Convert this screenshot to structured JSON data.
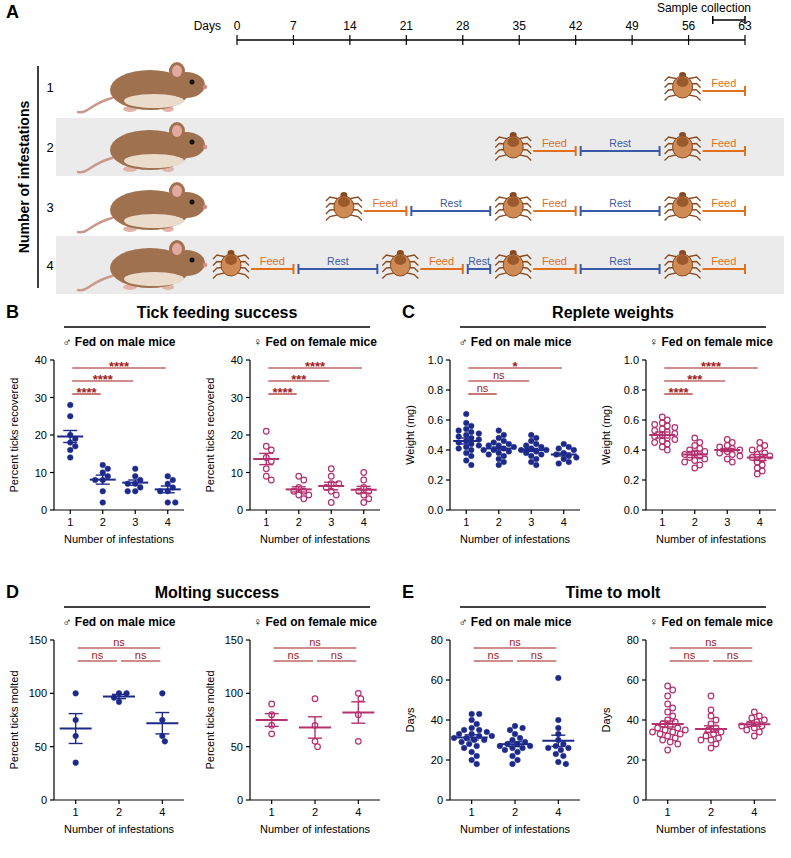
{
  "diagram": {
    "letter": "A",
    "axis_label": "Days",
    "days": [
      0,
      7,
      14,
      21,
      28,
      35,
      42,
      49,
      56,
      63
    ],
    "sample_collection": {
      "label": "Sample collection",
      "start": 59,
      "end": 63
    },
    "rows_label": "Number of infestations",
    "feed_label": "Feed",
    "rest_label": "Rest",
    "feed_duration": 7,
    "rows": [
      {
        "label": "1",
        "feeds": [
          56
        ]
      },
      {
        "label": "2",
        "feeds": [
          35,
          56
        ]
      },
      {
        "label": "3",
        "feeds": [
          14,
          35,
          56
        ]
      },
      {
        "label": "4",
        "feeds": [
          0,
          21,
          35,
          56
        ]
      }
    ]
  },
  "panels": [
    {
      "letter": "B",
      "title": "Tick feeding success"
    },
    {
      "letter": "C",
      "title": "Replete weights"
    },
    {
      "letter": "D",
      "title": "Molting success"
    },
    {
      "letter": "E",
      "title": "Time to molt"
    }
  ],
  "chart_data": [
    {
      "type": "scatter",
      "subtitle": "♂ Fed on male mice",
      "x_label": "Number of infestations",
      "y_label": "Percent ticks recovered",
      "categories": [
        "1",
        "2",
        "3",
        "4"
      ],
      "color": "#1d2a8a",
      "marker": "circle",
      "values": [
        [
          28,
          25,
          20,
          19,
          18,
          17,
          16,
          14
        ],
        [
          12,
          11,
          10,
          9,
          8,
          8,
          5,
          2
        ],
        [
          11,
          9,
          8,
          7,
          7,
          6,
          5,
          5
        ],
        [
          9,
          8,
          7,
          6,
          5,
          5,
          2,
          2
        ]
      ],
      "means": [
        19.6,
        8.1,
        7.3,
        5.5
      ],
      "errors": [
        1.6,
        1.2,
        0.7,
        0.9
      ],
      "ylim": [
        0,
        40
      ],
      "yticks": [
        0,
        10,
        20,
        30,
        40
      ],
      "annotations": [
        {
          "from": "1",
          "to": "2",
          "label": "****"
        },
        {
          "from": "1",
          "to": "3",
          "label": "****"
        },
        {
          "from": "1",
          "to": "4",
          "label": "****"
        }
      ]
    },
    {
      "type": "scatter",
      "subtitle": "♀ Fed on female mice",
      "x_label": "Number of infestations",
      "y_label": "Percent ticks recovered",
      "categories": [
        "1",
        "2",
        "3",
        "4"
      ],
      "color": "#b5306f",
      "marker": "open_circle",
      "values": [
        [
          21,
          17,
          16,
          14,
          13,
          11,
          9,
          8
        ],
        [
          9,
          8,
          6,
          5,
          5,
          4,
          4,
          3
        ],
        [
          11,
          9,
          7,
          7,
          6,
          5,
          4,
          2
        ],
        [
          10,
          8,
          6,
          5,
          5,
          4,
          3,
          2
        ]
      ],
      "means": [
        13.6,
        5.5,
        6.4,
        5.4
      ],
      "errors": [
        1.5,
        0.7,
        1.0,
        0.9
      ],
      "ylim": [
        0,
        40
      ],
      "yticks": [
        0,
        10,
        20,
        30,
        40
      ],
      "annotations": [
        {
          "from": "1",
          "to": "2",
          "label": "****"
        },
        {
          "from": "1",
          "to": "3",
          "label": "***"
        },
        {
          "from": "1",
          "to": "4",
          "label": "****"
        }
      ]
    },
    {
      "type": "scatter",
      "subtitle": "♂ Fed on male mice",
      "x_label": "Number of infestations",
      "y_label": "Weight (mg)",
      "categories": [
        "1",
        "2",
        "3",
        "4"
      ],
      "color": "#1d2a8a",
      "marker": "circle",
      "values": [
        [
          0.64,
          0.58,
          0.56,
          0.54,
          0.53,
          0.52,
          0.51,
          0.5,
          0.49,
          0.48,
          0.47,
          0.46,
          0.45,
          0.44,
          0.43,
          0.42,
          0.41,
          0.4,
          0.38,
          0.36,
          0.33,
          0.3
        ],
        [
          0.53,
          0.5,
          0.48,
          0.46,
          0.45,
          0.44,
          0.43,
          0.43,
          0.42,
          0.41,
          0.4,
          0.4,
          0.39,
          0.38,
          0.37,
          0.36,
          0.34,
          0.32,
          0.3
        ],
        [
          0.5,
          0.48,
          0.46,
          0.44,
          0.43,
          0.42,
          0.41,
          0.4,
          0.4,
          0.39,
          0.38,
          0.37,
          0.36,
          0.34,
          0.32,
          0.3
        ],
        [
          0.44,
          0.42,
          0.41,
          0.4,
          0.38,
          0.37,
          0.36,
          0.35,
          0.34,
          0.32,
          0.31
        ]
      ],
      "means": [
        0.46,
        0.41,
        0.4,
        0.37
      ],
      "errors": [
        0.02,
        0.01,
        0.01,
        0.01
      ],
      "ylim": [
        0,
        1
      ],
      "yticks": [
        {
          "value": 0,
          "label": "0.0"
        },
        0.2,
        0.4,
        0.6,
        0.8,
        {
          "value": 1,
          "label": "1.0"
        }
      ],
      "annotations": [
        {
          "from": "1",
          "to": "2",
          "label": "ns"
        },
        {
          "from": "1",
          "to": "3",
          "label": "ns"
        },
        {
          "from": "1",
          "to": "4",
          "label": "*"
        }
      ]
    },
    {
      "type": "scatter",
      "subtitle": "♀ Fed on female mice",
      "x_label": "Number of infestations",
      "y_label": "Weight (mg)",
      "categories": [
        "1",
        "2",
        "3",
        "4"
      ],
      "color": "#b5306f",
      "marker": "open_circle",
      "values": [
        [
          0.62,
          0.6,
          0.58,
          0.57,
          0.56,
          0.55,
          0.54,
          0.53,
          0.52,
          0.51,
          0.5,
          0.49,
          0.48,
          0.47,
          0.46,
          0.45,
          0.44,
          0.42,
          0.4
        ],
        [
          0.48,
          0.45,
          0.43,
          0.41,
          0.4,
          0.39,
          0.38,
          0.37,
          0.36,
          0.35,
          0.34,
          0.33,
          0.32,
          0.3,
          0.28
        ],
        [
          0.47,
          0.45,
          0.43,
          0.42,
          0.41,
          0.4,
          0.39,
          0.38,
          0.37,
          0.36,
          0.34,
          0.32
        ],
        [
          0.45,
          0.43,
          0.41,
          0.4,
          0.38,
          0.37,
          0.36,
          0.35,
          0.34,
          0.32,
          0.3,
          0.28,
          0.26,
          0.24
        ]
      ],
      "means": [
        0.5,
        0.37,
        0.4,
        0.35
      ],
      "errors": [
        0.02,
        0.02,
        0.01,
        0.02
      ],
      "ylim": [
        0,
        1
      ],
      "yticks": [
        {
          "value": 0,
          "label": "0.0"
        },
        0.2,
        0.4,
        0.6,
        0.8,
        {
          "value": 1,
          "label": "1.0"
        }
      ],
      "annotations": [
        {
          "from": "1",
          "to": "2",
          "label": "****"
        },
        {
          "from": "1",
          "to": "3",
          "label": "***"
        },
        {
          "from": "1",
          "to": "4",
          "label": "****"
        }
      ]
    },
    {
      "type": "scatter",
      "subtitle": "♂ Fed on male mice",
      "x_label": "Number of infestations",
      "y_label": "Percent ticks molted",
      "categories": [
        "1",
        "2",
        "4"
      ],
      "color": "#1d2a8a",
      "marker": "circle",
      "values": [
        [
          100,
          75,
          60,
          35
        ],
        [
          100,
          100,
          96,
          92
        ],
        [
          100,
          75,
          60,
          55
        ]
      ],
      "means": [
        67,
        97,
        72
      ],
      "errors": [
        14,
        2,
        10
      ],
      "ylim": [
        0,
        150
      ],
      "yticks": [
        0,
        50,
        100,
        150
      ],
      "annotations": [
        {
          "from": "1",
          "to": "2",
          "label": "ns"
        },
        {
          "from": "2",
          "to": "4",
          "label": "ns"
        },
        {
          "from": "1",
          "to": "4",
          "label": "ns"
        }
      ]
    },
    {
      "type": "scatter",
      "subtitle": "♀ Fed on female mice",
      "x_label": "Number of infestations",
      "y_label": "Percent ticks molted",
      "categories": [
        "1",
        "2",
        "4"
      ],
      "color": "#b5306f",
      "marker": "open_circle",
      "values": [
        [
          90,
          80,
          70,
          62
        ],
        [
          95,
          70,
          55,
          50
        ],
        [
          100,
          95,
          80,
          55
        ]
      ],
      "means": [
        75,
        68,
        82
      ],
      "errors": [
        6,
        10,
        10
      ],
      "ylim": [
        0,
        150
      ],
      "yticks": [
        0,
        50,
        100,
        150
      ],
      "annotations": [
        {
          "from": "1",
          "to": "2",
          "label": "ns"
        },
        {
          "from": "2",
          "to": "4",
          "label": "ns"
        },
        {
          "from": "1",
          "to": "4",
          "label": "ns"
        }
      ]
    },
    {
      "type": "scatter",
      "subtitle": "♂ Fed on male mice",
      "x_label": "Number of infestations",
      "y_label": "Days",
      "categories": [
        "1",
        "2",
        "4"
      ],
      "color": "#1d2a8a",
      "marker": "circle",
      "values": [
        [
          43,
          43,
          40,
          38,
          36,
          35,
          35,
          34,
          33,
          33,
          32,
          32,
          31,
          31,
          30,
          30,
          29,
          28,
          27,
          26,
          24,
          22,
          20,
          18
        ],
        [
          37,
          36,
          35,
          33,
          31,
          30,
          29,
          28,
          28,
          27,
          27,
          26,
          26,
          25,
          24,
          22,
          20,
          18
        ],
        [
          61,
          40,
          36,
          33,
          30,
          28,
          27,
          26,
          26,
          25,
          23,
          22,
          19,
          18
        ]
      ],
      "means": [
        31.3,
        27.9,
        29.6
      ],
      "errors": [
        1.3,
        1.2,
        2.8
      ],
      "ylim": [
        0,
        80
      ],
      "yticks": [
        0,
        20,
        40,
        60,
        80
      ],
      "annotations": [
        {
          "from": "1",
          "to": "2",
          "label": "ns"
        },
        {
          "from": "2",
          "to": "4",
          "label": "ns"
        },
        {
          "from": "1",
          "to": "4",
          "label": "ns"
        }
      ]
    },
    {
      "type": "scatter",
      "subtitle": "♀ Fed on female mice",
      "x_label": "Number of infestations",
      "y_label": "Days",
      "categories": [
        "1",
        "2",
        "4"
      ],
      "color": "#b5306f",
      "marker": "open_circle",
      "values": [
        [
          57,
          55,
          52,
          48,
          46,
          44,
          42,
          40,
          39,
          38,
          37,
          36,
          36,
          35,
          35,
          34,
          34,
          33,
          33,
          32,
          31,
          30,
          29,
          28,
          25
        ],
        [
          52,
          45,
          42,
          40,
          38,
          36,
          35,
          34,
          33,
          32,
          31,
          30,
          30,
          28,
          26
        ],
        [
          44,
          42,
          41,
          40,
          39,
          38,
          37,
          37,
          36,
          35,
          34,
          32
        ]
      ],
      "means": [
        38.0,
        35.5,
        37.9
      ],
      "errors": [
        1.5,
        1.6,
        1.0
      ],
      "ylim": [
        0,
        80
      ],
      "yticks": [
        0,
        20,
        40,
        60,
        80
      ],
      "annotations": [
        {
          "from": "1",
          "to": "2",
          "label": "ns"
        },
        {
          "from": "2",
          "to": "4",
          "label": "ns"
        },
        {
          "from": "1",
          "to": "4",
          "label": "ns"
        }
      ]
    }
  ]
}
